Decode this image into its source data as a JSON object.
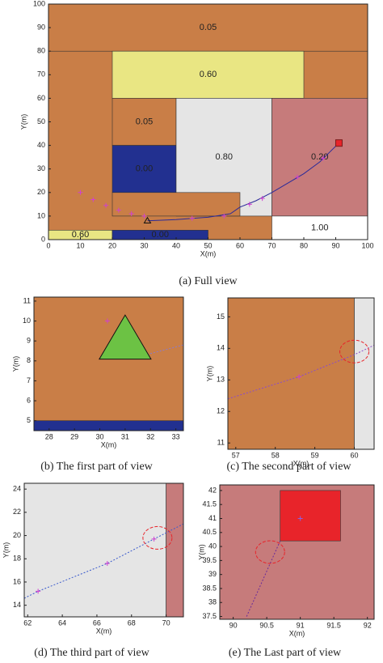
{
  "chart_data": [
    {
      "type": "region-map",
      "caption": "(a)  Full view",
      "xlabel": "X(m)",
      "ylabel": "Y(m)",
      "xlim": [
        0,
        100
      ],
      "ylim": [
        0,
        100
      ],
      "xticks": [
        0,
        10,
        20,
        30,
        40,
        50,
        60,
        70,
        80,
        90,
        100
      ],
      "yticks": [
        0,
        10,
        20,
        30,
        40,
        50,
        60,
        70,
        80,
        90,
        100
      ],
      "regions": [
        {
          "color": "#c97e47",
          "x": [
            0,
            100
          ],
          "y": [
            0,
            100
          ]
        },
        {
          "label": "0.05",
          "color": "#c97e47",
          "x": [
            0,
            100
          ],
          "y": [
            80,
            100
          ]
        },
        {
          "label": "0.60",
          "color": "#e9e683",
          "x": [
            20,
            80
          ],
          "y": [
            60,
            80
          ]
        },
        {
          "label": "0.05",
          "color": "#c97e47",
          "x": [
            20,
            40
          ],
          "y": [
            40,
            60
          ]
        },
        {
          "label": "0.00",
          "color": "#223090",
          "x": [
            20,
            40
          ],
          "y": [
            20,
            40
          ]
        },
        {
          "label": "0.80",
          "color": "#e5e5e5",
          "x": [
            40,
            70
          ],
          "y": [
            10,
            60
          ]
        },
        {
          "label": "0.20",
          "color": "#c67b7b",
          "x": [
            70,
            100
          ],
          "y": [
            10,
            60
          ]
        },
        {
          "color": "#c97e47",
          "x": [
            20,
            60
          ],
          "y": [
            10,
            20
          ]
        },
        {
          "label": "1.00",
          "color": "#ffffff",
          "x": [
            70,
            100
          ],
          "y": [
            0,
            10
          ]
        },
        {
          "label": "0.60",
          "color": "#e9e683",
          "x": [
            0,
            20
          ],
          "y": [
            0,
            4
          ]
        },
        {
          "label": "0.00",
          "color": "#223090",
          "x": [
            20,
            50
          ],
          "y": [
            0,
            4
          ]
        }
      ],
      "path": {
        "color": "#2a2a9a",
        "x": [
          31,
          40,
          50,
          57,
          60,
          65,
          70,
          75,
          80,
          85,
          88,
          91
        ],
        "y": [
          8,
          8.5,
          9.5,
          11,
          13.8,
          16.5,
          20,
          24,
          28,
          33,
          37,
          41
        ]
      },
      "markers": {
        "color": "#d040d0",
        "x": [
          10,
          14,
          18,
          22,
          26,
          30,
          45,
          55,
          63,
          67,
          78,
          86
        ],
        "y": [
          20,
          17,
          14.5,
          12.5,
          11,
          10,
          9,
          10,
          15,
          17.5,
          26.5,
          34.5
        ]
      },
      "start": {
        "x": 31,
        "y": 8,
        "color": "#222222"
      },
      "goal": {
        "x": 91,
        "y": 41,
        "color": "#e8242a"
      }
    },
    {
      "type": "region-map",
      "caption": "(b)  The first part of view",
      "xlabel": "X(m)",
      "ylabel": "Y(m)",
      "xlim": [
        27.4,
        33.3
      ],
      "ylim": [
        4.5,
        11.2
      ],
      "xticks": [
        28,
        29,
        30,
        31,
        32,
        33
      ],
      "yticks": [
        5,
        6,
        7,
        8,
        9,
        10,
        11
      ],
      "regions": [
        {
          "color": "#c97e47",
          "x": [
            27.4,
            33.3
          ],
          "y": [
            4.5,
            11.2
          ]
        },
        {
          "color": "#223090",
          "x": [
            27.4,
            33.3
          ],
          "y": [
            4.5,
            5
          ]
        }
      ],
      "path": {
        "color": "#8a7acc",
        "x": [
          31.5,
          33.3
        ],
        "y": [
          8.2,
          8.8
        ]
      },
      "markers": {
        "color": "#d040d0",
        "x": [
          30.3
        ],
        "y": [
          10
        ]
      },
      "start": {
        "x": 31,
        "y": 9,
        "color": "#6cc244"
      }
    },
    {
      "type": "region-map",
      "caption": "(c)  The second part of view",
      "xlabel": "X(m)",
      "ylabel": "Y(m)",
      "xlim": [
        56.8,
        60.5
      ],
      "ylim": [
        10.8,
        15.6
      ],
      "xticks": [
        57,
        58,
        59,
        60
      ],
      "yticks": [
        11,
        12,
        13,
        14,
        15
      ],
      "regions": [
        {
          "color": "#c97e47",
          "x": [
            56.8,
            60
          ],
          "y": [
            10.8,
            15.6
          ]
        },
        {
          "color": "#e5e5e5",
          "x": [
            60,
            60.5
          ],
          "y": [
            10.8,
            15.6
          ]
        }
      ],
      "path": {
        "color": "#8a4acc",
        "x": [
          56.8,
          58.6,
          60,
          60.5
        ],
        "y": [
          12.4,
          13.1,
          13.8,
          14.1
        ]
      },
      "markers": {
        "color": "#d040d0",
        "x": [
          58.6
        ],
        "y": [
          13.1
        ]
      },
      "circles": {
        "color": "#e8242a",
        "x": [
          60
        ],
        "y": [
          13.9
        ]
      }
    },
    {
      "type": "region-map",
      "caption": "(d)  The third part of view",
      "xlabel": "X(m)",
      "ylabel": "Y(m)",
      "xlim": [
        61.8,
        71
      ],
      "ylim": [
        13,
        24.5
      ],
      "xticks": [
        62,
        64,
        66,
        68,
        70
      ],
      "yticks": [
        14,
        16,
        18,
        20,
        22,
        24
      ],
      "regions": [
        {
          "color": "#e5e5e5",
          "x": [
            61.8,
            70
          ],
          "y": [
            13,
            24.5
          ]
        },
        {
          "color": "#c67b7b",
          "x": [
            70,
            71
          ],
          "y": [
            13,
            24.5
          ]
        }
      ],
      "path": {
        "color": "#3a5acc",
        "x": [
          61.8,
          62.6,
          66.6,
          69.3,
          71
        ],
        "y": [
          14.6,
          15.2,
          17.6,
          19.7,
          21
        ]
      },
      "markers": {
        "color": "#d040d0",
        "x": [
          62.6,
          66.6,
          69.3
        ],
        "y": [
          15.2,
          17.6,
          19.7
        ]
      },
      "circles": {
        "color": "#e8242a",
        "x": [
          69.5
        ],
        "y": [
          19.8
        ]
      }
    },
    {
      "type": "region-map",
      "caption": "(e)  The Last part of view",
      "xlabel": "X(m)",
      "ylabel": "Y(m)",
      "xlim": [
        89.8,
        92.1
      ],
      "ylim": [
        37.4,
        42.2
      ],
      "xticks": [
        90,
        90.5,
        91,
        91.5,
        92
      ],
      "yticks": [
        37.5,
        38,
        38.5,
        39,
        39.5,
        40,
        40.5,
        41,
        41.5,
        42
      ],
      "regions": [
        {
          "color": "#c67b7b",
          "x": [
            89.8,
            92.1
          ],
          "y": [
            37.4,
            42.2
          ]
        },
        {
          "color": "#e8242a",
          "x": [
            90.7,
            91.6
          ],
          "y": [
            40.2,
            42
          ]
        }
      ],
      "path": {
        "color": "#6a2a9a",
        "x": [
          90.2,
          90.7
        ],
        "y": [
          37.5,
          40.2
        ]
      },
      "markers": {
        "color": "#8a60e0",
        "x": [
          91
        ],
        "y": [
          41
        ]
      },
      "circles": {
        "color": "#e8242a",
        "x": [
          90.55
        ],
        "y": [
          39.8
        ]
      }
    }
  ]
}
